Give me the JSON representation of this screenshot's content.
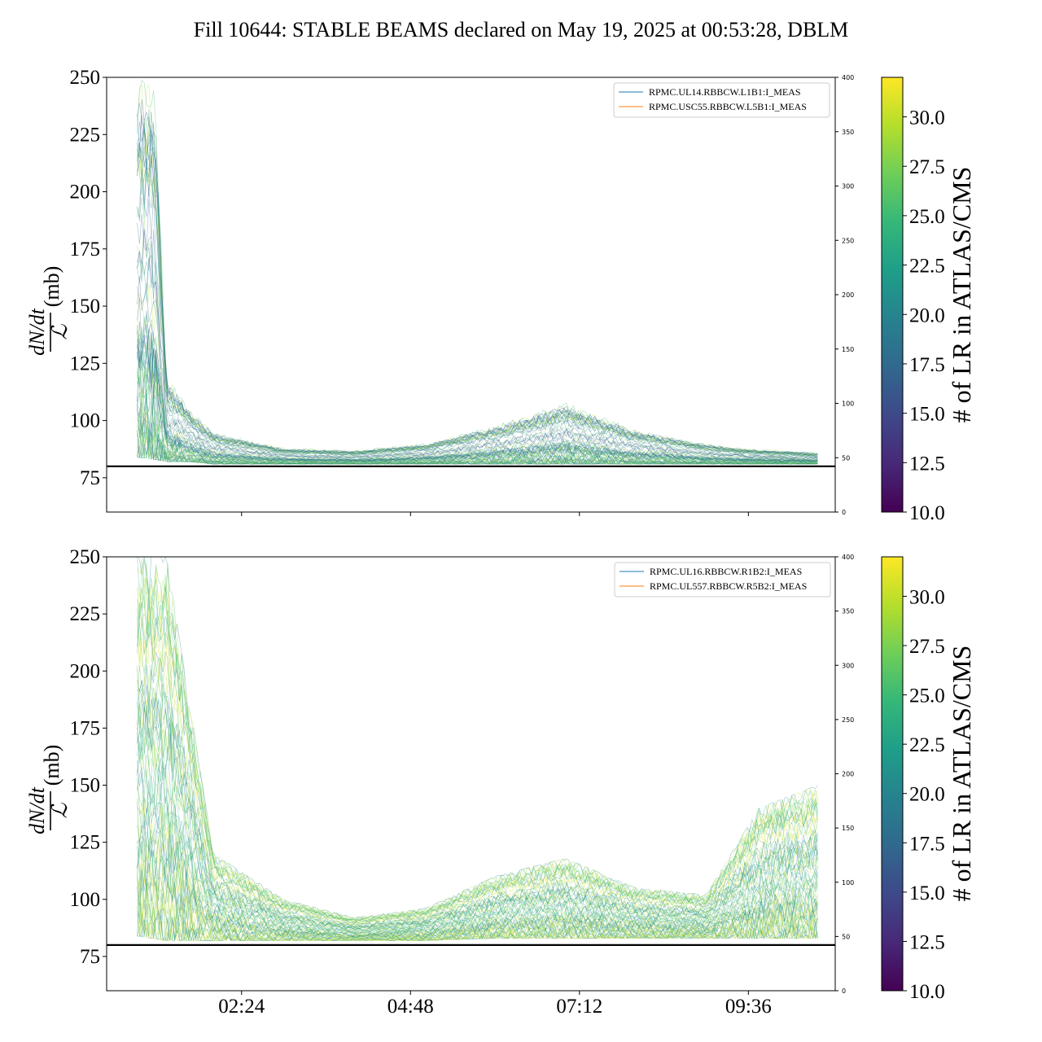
{
  "title": "Fill 10644: STABLE BEAMS declared on May 19, 2025 at 00:53:28, DBLM",
  "colors": {
    "viridis": [
      "#440154",
      "#482878",
      "#3e4989",
      "#31688e",
      "#26828e",
      "#1f9e89",
      "#35b779",
      "#6ece58",
      "#b5de2b",
      "#fde725"
    ],
    "legend_line_1": "#1f77b4",
    "legend_line_2": "#ff7f0e",
    "threshold_line": "#000000"
  },
  "chart_data": [
    {
      "type": "line",
      "panel": "top",
      "ylabel": "(mb)",
      "ylabel_fraction": {
        "numerator": "dN/dt",
        "denominator": "ℒ"
      },
      "ylim": [
        60,
        250
      ],
      "yticks": [
        "75",
        "100",
        "125",
        "150",
        "175",
        "200",
        "225",
        "250"
      ],
      "yticks_values": [
        75,
        100,
        125,
        150,
        175,
        200,
        225,
        250
      ],
      "right_ylim": [
        0,
        400
      ],
      "right_yticks": [
        "0",
        "50",
        "100",
        "150",
        "200",
        "250",
        "300",
        "350",
        "400"
      ],
      "xlim": [
        "00:29",
        "10:50"
      ],
      "xticks": [],
      "threshold": 80,
      "legend": [
        "RPMC.UL14.RBBCW.L1B1:I_MEAS",
        "RPMC.USC55.RBBCW.L5B1:I_MEAS"
      ],
      "legend_placement": "top-right",
      "colorbar": {
        "label": "# of LR in ATLAS/CMS",
        "range": [
          10,
          32
        ],
        "ticks": [
          "10.0",
          "12.5",
          "15.0",
          "17.5",
          "20.0",
          "22.5",
          "25.0",
          "27.5",
          "30.0"
        ]
      },
      "series": [
        {
          "name": "RPMC.UL14.RBBCW.L1B1:I_MEAS",
          "x": [
            "00:55",
            "01:10",
            "01:20",
            "01:40",
            "02:00",
            "03:00",
            "04:00",
            "05:00",
            "06:00",
            "07:00",
            "08:00",
            "09:00",
            "09:30",
            "10:35"
          ],
          "y": [
            0,
            0,
            0,
            0,
            0,
            0,
            0,
            0,
            0,
            0,
            0,
            0,
            0,
            0
          ]
        },
        {
          "name": "RPMC.USC55.RBBCW.L5B1:I_MEAS",
          "x": [
            "00:55",
            "01:10",
            "01:20",
            "01:40",
            "02:00",
            "03:00",
            "04:00",
            "05:00",
            "06:00",
            "07:00",
            "08:00",
            "09:00",
            "09:30",
            "10:35"
          ],
          "y": [
            0,
            0,
            0,
            0,
            0,
            0,
            0,
            0,
            0,
            0,
            0,
            0,
            0,
            0
          ]
        },
        {
          "name": "",
          "band_lower": [
            84,
            83,
            82,
            82,
            81,
            81,
            81,
            81,
            81,
            81,
            81,
            81,
            81,
            81
          ],
          "band_upper": [
            250,
            250,
            120,
            105,
            95,
            88,
            87,
            90,
            98,
            108,
            96,
            90,
            88,
            86
          ],
          "x": [
            "00:55",
            "01:10",
            "01:20",
            "01:40",
            "02:00",
            "03:00",
            "04:00",
            "05:00",
            "06:00",
            "07:00",
            "08:00",
            "09:00",
            "09:30",
            "10:35"
          ]
        }
      ]
    },
    {
      "type": "line",
      "panel": "bottom",
      "ylabel": "(mb)",
      "ylabel_fraction": {
        "numerator": "dN/dt",
        "denominator": "ℒ"
      },
      "ylim": [
        60,
        250
      ],
      "yticks": [
        "75",
        "100",
        "125",
        "150",
        "175",
        "200",
        "225",
        "250"
      ],
      "yticks_values": [
        75,
        100,
        125,
        150,
        175,
        200,
        225,
        250
      ],
      "right_ylim": [
        0,
        400
      ],
      "right_yticks": [
        "0",
        "50",
        "100",
        "150",
        "200",
        "250",
        "300",
        "350",
        "400"
      ],
      "xlim": [
        "00:29",
        "10:50"
      ],
      "xticks": [
        "02:24",
        "04:48",
        "07:12",
        "09:36"
      ],
      "threshold": 80,
      "legend": [
        "RPMC.UL16.RBBCW.R1B2:I_MEAS",
        "RPMC.UL557.RBBCW.R5B2:I_MEAS"
      ],
      "legend_placement": "top-right",
      "colorbar": {
        "label": "# of LR in ATLAS/CMS",
        "range": [
          10,
          32
        ],
        "ticks": [
          "10.0",
          "12.5",
          "15.0",
          "17.5",
          "20.0",
          "22.5",
          "25.0",
          "27.5",
          "30.0"
        ]
      },
      "series": [
        {
          "name": "RPMC.UL16.RBBCW.R1B2:I_MEAS",
          "x": [
            "00:55",
            "01:20",
            "02:00",
            "03:00",
            "04:00",
            "05:00",
            "06:00",
            "07:00",
            "08:00",
            "09:00",
            "09:45",
            "10:35"
          ],
          "y": [
            0,
            0,
            0,
            0,
            0,
            0,
            0,
            0,
            0,
            0,
            0,
            0
          ]
        },
        {
          "name": "RPMC.UL557.RBBCW.R5B2:I_MEAS",
          "x": [
            "00:55",
            "01:20",
            "02:00",
            "03:00",
            "04:00",
            "05:00",
            "06:00",
            "07:00",
            "08:00",
            "09:00",
            "09:45",
            "10:35"
          ],
          "y": [
            0,
            0,
            0,
            0,
            0,
            0,
            0,
            0,
            0,
            0,
            0,
            0
          ]
        },
        {
          "name": "",
          "band_lower": [
            84,
            82,
            82,
            82,
            82,
            82,
            83,
            83,
            83,
            83,
            83,
            83
          ],
          "band_upper": [
            250,
            250,
            120,
            100,
            92,
            96,
            110,
            118,
            105,
            102,
            140,
            150
          ],
          "x": [
            "00:55",
            "01:20",
            "02:00",
            "03:00",
            "04:00",
            "05:00",
            "06:00",
            "07:00",
            "08:00",
            "09:00",
            "09:45",
            "10:35"
          ]
        }
      ]
    }
  ]
}
